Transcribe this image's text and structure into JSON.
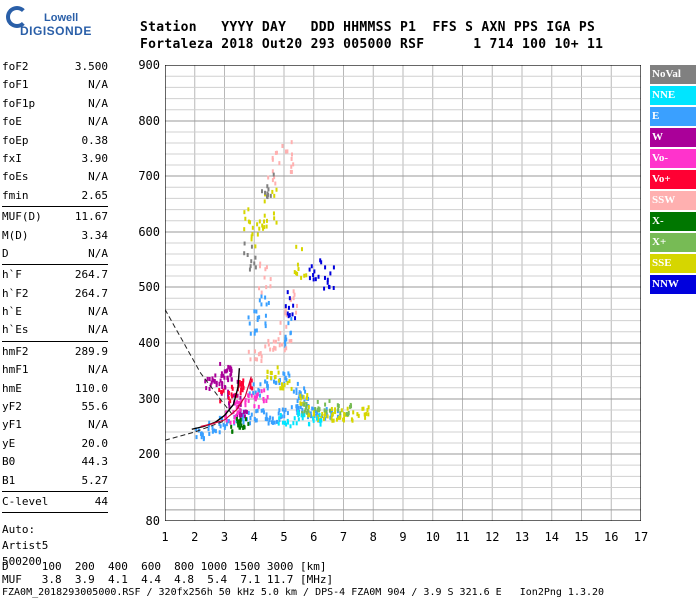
{
  "logo": {
    "line1": "Lowell",
    "line2": "DIGISONDE"
  },
  "header": {
    "labels": "Station   YYYY DAY   DDD HHMMSS P1  FFS S AXN PPS IGA PS",
    "values": "Fortaleza 2018 Out20 293 005000 RSF      1 714 100 10+ 11"
  },
  "params": {
    "group1": [
      {
        "name": "foF2",
        "value": "3.500"
      },
      {
        "name": "foF1",
        "value": "N/A"
      },
      {
        "name": "foF1p",
        "value": "N/A"
      },
      {
        "name": "foE",
        "value": "N/A"
      },
      {
        "name": "foEp",
        "value": "0.38"
      },
      {
        "name": "fxI",
        "value": "3.90"
      },
      {
        "name": "foEs",
        "value": "N/A"
      },
      {
        "name": "fmin",
        "value": "2.65"
      }
    ],
    "group2": [
      {
        "name": "MUF(D)",
        "value": "11.67"
      },
      {
        "name": "M(D)",
        "value": "3.34"
      },
      {
        "name": "D",
        "value": "N/A"
      }
    ],
    "group3": [
      {
        "name": "h`F",
        "value": "264.7"
      },
      {
        "name": "h`F2",
        "value": "264.7"
      },
      {
        "name": "h`E",
        "value": "N/A"
      },
      {
        "name": "h`Es",
        "value": "N/A"
      }
    ],
    "group4": [
      {
        "name": "hmF2",
        "value": "289.9"
      },
      {
        "name": "hmF1",
        "value": "N/A"
      },
      {
        "name": "hmE",
        "value": "110.0"
      },
      {
        "name": "yF2",
        "value": "55.6"
      },
      {
        "name": "yF1",
        "value": "N/A"
      },
      {
        "name": "yE",
        "value": "20.0"
      },
      {
        "name": "B0",
        "value": "44.3"
      },
      {
        "name": "B1",
        "value": "5.27"
      }
    ],
    "group5": [
      {
        "name": "C-level",
        "value": "44"
      }
    ],
    "auto_label": "Auto:",
    "artist": "Artist5",
    "artist_version": "500200"
  },
  "legend": [
    {
      "label": "NoVal",
      "color": "#808080"
    },
    {
      "label": "NNE",
      "color": "#00e5ff"
    },
    {
      "label": "E",
      "color": "#3aa0ff"
    },
    {
      "label": "W",
      "color": "#aa0099"
    },
    {
      "label": "Vo-",
      "color": "#ff33cc"
    },
    {
      "label": "Vo+",
      "color": "#ff0033"
    },
    {
      "label": "SSW",
      "color": "#ffb0b0"
    },
    {
      "label": "X-",
      "color": "#007700"
    },
    {
      "label": "X+",
      "color": "#77bb55"
    },
    {
      "label": "SSE",
      "color": "#d6d600"
    },
    {
      "label": "NNW",
      "color": "#0000dd"
    }
  ],
  "chart_data": {
    "type": "scatter",
    "x_ticks": [
      "1",
      "2",
      "3",
      "4",
      "5",
      "6",
      "7",
      "8",
      "9",
      "10",
      "11",
      "12",
      "13",
      "14",
      "15",
      "16",
      "17"
    ],
    "y_ticks": [
      "80",
      "200",
      "300",
      "400",
      "500",
      "600",
      "700",
      "800",
      "900"
    ],
    "xlim": [
      1,
      17
    ],
    "y_axis_note": "Virtual height [km], nonlinear scale",
    "grid": true,
    "series": [
      {
        "name": "E",
        "color": "#3aa0ff",
        "points": [
          [
            2.2,
            240
          ],
          [
            2.6,
            250
          ],
          [
            3,
            260
          ],
          [
            3.4,
            265
          ],
          [
            3.8,
            270
          ],
          [
            4.2,
            275
          ],
          [
            4.6,
            270
          ],
          [
            5,
            275
          ],
          [
            5.4,
            280
          ],
          [
            5.8,
            280
          ],
          [
            6.2,
            275
          ],
          [
            6.6,
            280
          ],
          [
            4,
            320
          ],
          [
            4.5,
            330
          ],
          [
            5,
            340
          ],
          [
            5.5,
            320
          ],
          [
            4,
            450
          ],
          [
            4.3,
            460
          ],
          [
            5.2,
            420
          ],
          [
            5.6,
            300
          ]
        ]
      },
      {
        "name": "SSE",
        "color": "#d6d600",
        "points": [
          [
            6,
            275
          ],
          [
            6.4,
            270
          ],
          [
            6.8,
            275
          ],
          [
            7.2,
            275
          ],
          [
            7.6,
            280
          ],
          [
            5.6,
            300
          ],
          [
            5,
            330
          ],
          [
            4.6,
            350
          ],
          [
            4.2,
            600
          ],
          [
            4.5,
            650
          ],
          [
            3.8,
            620
          ],
          [
            5.5,
            550
          ]
        ]
      },
      {
        "name": "W",
        "color": "#aa0099",
        "points": [
          [
            2.5,
            330
          ],
          [
            2.8,
            340
          ],
          [
            3,
            360
          ],
          [
            3.3,
            300
          ],
          [
            3.6,
            280
          ],
          [
            2.9,
            320
          ],
          [
            3.2,
            345
          ]
        ]
      },
      {
        "name": "Vo-",
        "color": "#ff33cc",
        "points": [
          [
            3.2,
            270
          ],
          [
            3.5,
            290
          ],
          [
            3.9,
            300
          ],
          [
            4.2,
            310
          ]
        ]
      },
      {
        "name": "Vo+",
        "color": "#ff0033",
        "points": [
          [
            3,
            310
          ],
          [
            3.4,
            320
          ],
          [
            3.7,
            330
          ]
        ]
      },
      {
        "name": "SSW",
        "color": "#ffb0b0",
        "points": [
          [
            4,
            380
          ],
          [
            4.5,
            400
          ],
          [
            5,
            420
          ],
          [
            4.3,
            520
          ],
          [
            5.2,
            480
          ],
          [
            4.6,
            720
          ],
          [
            5.1,
            740
          ]
        ]
      },
      {
        "name": "X-",
        "color": "#007700",
        "points": [
          [
            3.4,
            250
          ],
          [
            3.6,
            260
          ]
        ]
      },
      {
        "name": "X+",
        "color": "#77bb55",
        "points": [
          [
            5.8,
            285
          ],
          [
            6.3,
            290
          ],
          [
            7,
            285
          ]
        ]
      },
      {
        "name": "NNE",
        "color": "#00e5ff",
        "points": [
          [
            5,
            265
          ],
          [
            5.5,
            270
          ],
          [
            6,
            268
          ]
        ]
      },
      {
        "name": "NNW",
        "color": "#0000dd",
        "points": [
          [
            5.2,
            470
          ],
          [
            6.5,
            510
          ],
          [
            6,
            540
          ]
        ]
      },
      {
        "name": "NoVal",
        "color": "#808080",
        "points": [
          [
            4.4,
            680
          ],
          [
            3.8,
            560
          ]
        ]
      }
    ]
  },
  "bottom": {
    "d_row": "D     100  200  400  600  800 1000 1500 3000 [km]",
    "muf_row": "MUF   3.8  3.9  4.1  4.4  4.8  5.4  7.1 11.7 [MHz]",
    "footer": "FZA0M_2018293005000.RSF / 320fx256h 50 kHz 5.0 km / DPS-4 FZA0M 904 / 3.9 S 321.6 E   Ion2Png 1.3.20"
  }
}
